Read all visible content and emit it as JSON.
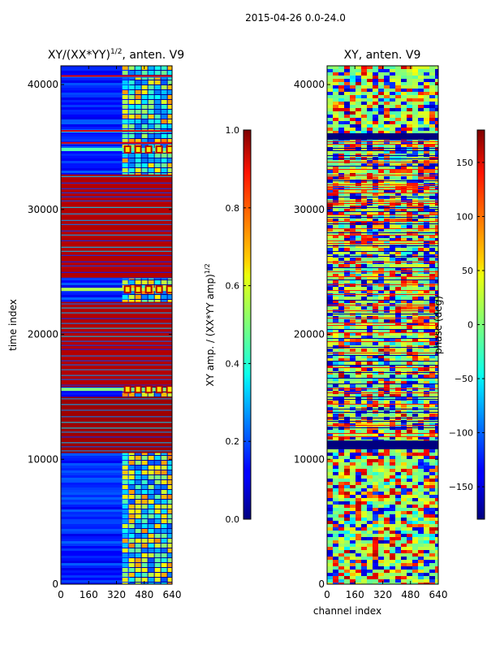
{
  "figure": {
    "suptitle": "2015-04-26 0.0-24.0"
  },
  "chart_data": [
    {
      "type": "heatmap",
      "title": "XY/(XX*YY)^1/2, anten. V9",
      "title_main": "XY/(XX*YY)",
      "title_sup": "1/2",
      "title_tail": ", anten. V9",
      "xlabel": "",
      "ylabel": "time index",
      "xlim": [
        0,
        640
      ],
      "ylim": [
        0,
        41500
      ],
      "xticks": [
        0,
        160,
        320,
        480,
        640
      ],
      "xtick_labels": [
        "0",
        "160",
        "320",
        "480",
        "640"
      ],
      "yticks": [
        0,
        10000,
        20000,
        30000,
        40000
      ],
      "ytick_labels": [
        "0",
        "10000",
        "20000",
        "30000",
        "40000"
      ],
      "colormap": "jet",
      "colorbar": {
        "label": "XY amp. / (XX*YY amp)^1/2",
        "label_main": "XY amp. / (XX*YY amp)",
        "label_sup": "1/2",
        "range": [
          0.0,
          1.0
        ],
        "ticks": [
          0.0,
          0.2,
          0.4,
          0.6,
          0.8,
          1.0
        ],
        "tick_labels": [
          "0.0",
          "0.2",
          "0.4",
          "0.6",
          "0.8",
          "1.0"
        ]
      },
      "bands": [
        {
          "t_start": 10500,
          "t_end": 15000,
          "value": 0.97
        },
        {
          "t_start": 15800,
          "t_end": 22600,
          "value": 0.95
        },
        {
          "t_start": 24500,
          "t_end": 32800,
          "value": 0.95
        },
        {
          "t_start": 35200,
          "t_end": 35400,
          "value": 0.9
        },
        {
          "t_start": 36200,
          "t_end": 36350,
          "value": 0.9
        },
        {
          "t_start": 40600,
          "t_end": 40750,
          "value": 0.9
        }
      ],
      "bright_rows": [
        {
          "t": 23600,
          "value": 0.55
        },
        {
          "t": 15600,
          "value": 0.5
        },
        {
          "t": 34800,
          "value": 0.45
        }
      ],
      "high_channel_region": [
        400,
        640
      ]
    },
    {
      "type": "heatmap",
      "title": "XY, anten. V9",
      "xlabel": "channel index",
      "ylabel": "",
      "xlim": [
        0,
        640
      ],
      "ylim": [
        0,
        41500
      ],
      "xticks": [
        0,
        160,
        320,
        480,
        640
      ],
      "xtick_labels": [
        "0",
        "160",
        "320",
        "480",
        "640"
      ],
      "yticks": [
        0,
        10000,
        20000,
        30000,
        40000
      ],
      "ytick_labels": [
        "0",
        "10000",
        "20000",
        "30000",
        "40000"
      ],
      "colormap": "jet",
      "colorbar": {
        "label": "phase (deg)",
        "range": [
          -180,
          180
        ],
        "ticks": [
          -150,
          -100,
          -50,
          0,
          50,
          100,
          150
        ],
        "tick_labels": [
          "−150",
          "−100",
          "−50",
          "0",
          "50",
          "100",
          "150"
        ]
      },
      "dark_bands": [
        {
          "t_start": 10800,
          "t_end": 11500
        },
        {
          "t_start": 35600,
          "t_end": 36100
        }
      ]
    }
  ]
}
